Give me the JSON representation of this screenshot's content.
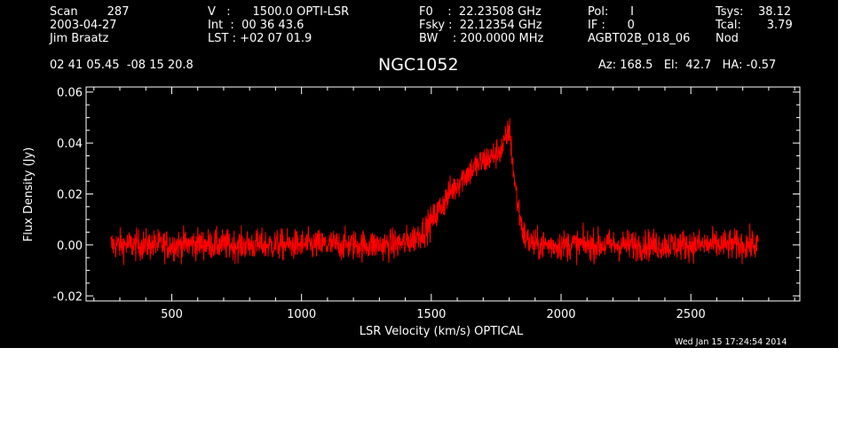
{
  "header": {
    "col1": {
      "l1": "Scan        287",
      "l2": "2003-04-27",
      "l3": "Jim Braatz"
    },
    "col2": {
      "l1": "V   :      1500.0 OPTI-LSR",
      "l2": "Int  :  00 36 43.6",
      "l3": "LST : +02 07 01.9"
    },
    "col3": {
      "l1": "F0    :  22.23508 GHz",
      "l2": "Fsky :  22.12354 GHz",
      "l3": "BW    : 200.0000 MHz"
    },
    "col4": {
      "l1": "Pol:      I",
      "l2": "IF :      0",
      "l3": "AGBT02B_018_06"
    },
    "col5": {
      "l1": "Tsys:    38.12",
      "l2": "Tcal:       3.79",
      "l3": "Nod"
    },
    "coords": "02 41 05.45  -08 15 20.8",
    "source": "NGC1052",
    "azel": "Az: 168.5   El:  42.7   HA: -0.57",
    "timestamp": "Wed Jan 15 17:24:54 2014"
  },
  "colors": {
    "background": "#000000",
    "foreground": "#ffffff",
    "trace": "#ff0000"
  },
  "chart_data": {
    "type": "line",
    "title": "NGC1052",
    "xlabel": "LSR Velocity (km/s) OPTICAL",
    "ylabel": "Flux Density (Jy)",
    "xlim": [
      170,
      2920
    ],
    "ylim": [
      -0.022,
      0.062
    ],
    "x_ticks": [
      500,
      1000,
      1500,
      2000,
      2500
    ],
    "y_ticks": [
      -0.02,
      0.0,
      0.02,
      0.04,
      0.06
    ],
    "y_tick_labels": [
      "-0.02",
      "0.00",
      "0.02",
      "0.04",
      "0.06"
    ],
    "grid": false,
    "series": [
      {
        "x": [
          265,
          300,
          400,
          500,
          600,
          700,
          800,
          900,
          1000,
          1100,
          1200,
          1300,
          1350,
          1400,
          1425,
          1450,
          1475,
          1500,
          1525,
          1550,
          1575,
          1600,
          1625,
          1650,
          1675,
          1700,
          1720,
          1740,
          1760,
          1775,
          1790,
          1800,
          1810,
          1820,
          1830,
          1840,
          1850,
          1860,
          1880,
          1900,
          2000,
          2200,
          2400,
          2600,
          2760
        ],
        "y": [
          0.0,
          0.0,
          0.0,
          0.0,
          0.0005,
          0.0,
          0.0,
          0.0,
          0.0,
          0.0,
          0.0,
          0.0,
          0.0,
          0.001,
          0.002,
          0.004,
          0.006,
          0.009,
          0.013,
          0.017,
          0.021,
          0.024,
          0.027,
          0.029,
          0.031,
          0.033,
          0.034,
          0.035,
          0.037,
          0.038,
          0.042,
          0.046,
          0.036,
          0.026,
          0.018,
          0.012,
          0.007,
          0.003,
          0.001,
          0.0,
          0.0,
          0.0,
          0.0,
          0.0,
          0.0
        ],
        "noise_rms": 0.003
      }
    ]
  }
}
